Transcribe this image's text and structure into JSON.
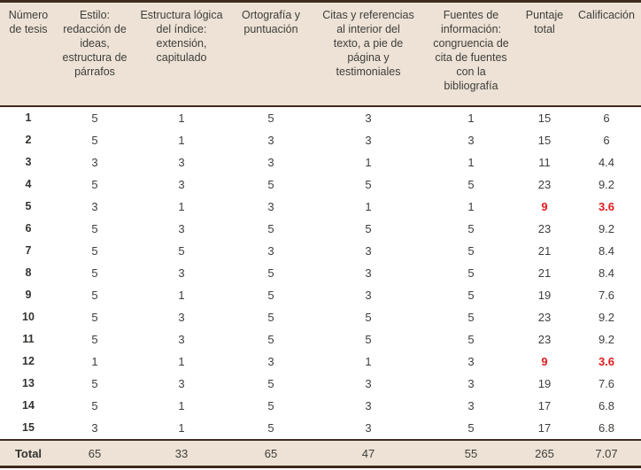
{
  "table": {
    "columns": [
      {
        "label": "Número de tesis"
      },
      {
        "label": "Estilo: redacción de ideas, estructura de párrafos"
      },
      {
        "label": "Estructura lógica del índice: extensión, capitulado"
      },
      {
        "label": "Ortografía y puntuación"
      },
      {
        "label": "Citas y referencias al interior del texto, a pie de página y testimoniales"
      },
      {
        "label": "Fuentes de información: congruencia de cita de fuentes con la bibliografía"
      },
      {
        "label": "Puntaje total"
      },
      {
        "label": "Calificación"
      }
    ],
    "rows": [
      {
        "id": "1",
        "values": [
          "5",
          "1",
          "5",
          "3",
          "1",
          "15",
          "6"
        ],
        "highlight": false
      },
      {
        "id": "2",
        "values": [
          "5",
          "1",
          "3",
          "3",
          "3",
          "15",
          "6"
        ],
        "highlight": false
      },
      {
        "id": "3",
        "values": [
          "3",
          "3",
          "3",
          "1",
          "1",
          "11",
          "4.4"
        ],
        "highlight": false
      },
      {
        "id": "4",
        "values": [
          "5",
          "3",
          "5",
          "5",
          "5",
          "23",
          "9.2"
        ],
        "highlight": false
      },
      {
        "id": "5",
        "values": [
          "3",
          "1",
          "3",
          "1",
          "1",
          "9",
          "3.6"
        ],
        "highlight": true
      },
      {
        "id": "6",
        "values": [
          "5",
          "3",
          "5",
          "5",
          "5",
          "23",
          "9.2"
        ],
        "highlight": false
      },
      {
        "id": "7",
        "values": [
          "5",
          "5",
          "3",
          "3",
          "5",
          "21",
          "8.4"
        ],
        "highlight": false
      },
      {
        "id": "8",
        "values": [
          "5",
          "3",
          "5",
          "3",
          "5",
          "21",
          "8.4"
        ],
        "highlight": false
      },
      {
        "id": "9",
        "values": [
          "5",
          "1",
          "5",
          "3",
          "5",
          "19",
          "7.6"
        ],
        "highlight": false
      },
      {
        "id": "10",
        "values": [
          "5",
          "3",
          "5",
          "5",
          "5",
          "23",
          "9.2"
        ],
        "highlight": false
      },
      {
        "id": "11",
        "values": [
          "5",
          "3",
          "5",
          "5",
          "5",
          "23",
          "9.2"
        ],
        "highlight": false
      },
      {
        "id": "12",
        "values": [
          "1",
          "1",
          "3",
          "1",
          "3",
          "9",
          "3.6"
        ],
        "highlight": true
      },
      {
        "id": "13",
        "values": [
          "5",
          "3",
          "5",
          "3",
          "3",
          "19",
          "7.6"
        ],
        "highlight": false
      },
      {
        "id": "14",
        "values": [
          "5",
          "1",
          "5",
          "3",
          "3",
          "17",
          "6.8"
        ],
        "highlight": false
      },
      {
        "id": "15",
        "values": [
          "3",
          "1",
          "5",
          "3",
          "5",
          "17",
          "6.8"
        ],
        "highlight": false
      }
    ],
    "total": {
      "label": "Total",
      "values": [
        "65",
        "33",
        "65",
        "47",
        "55",
        "265",
        "7.07"
      ]
    },
    "colors": {
      "header_bg": "#ede2d5",
      "rule_dark": "#3e2b1e",
      "text": "#3e3e3c",
      "highlight_red": "#e31b1e"
    }
  }
}
